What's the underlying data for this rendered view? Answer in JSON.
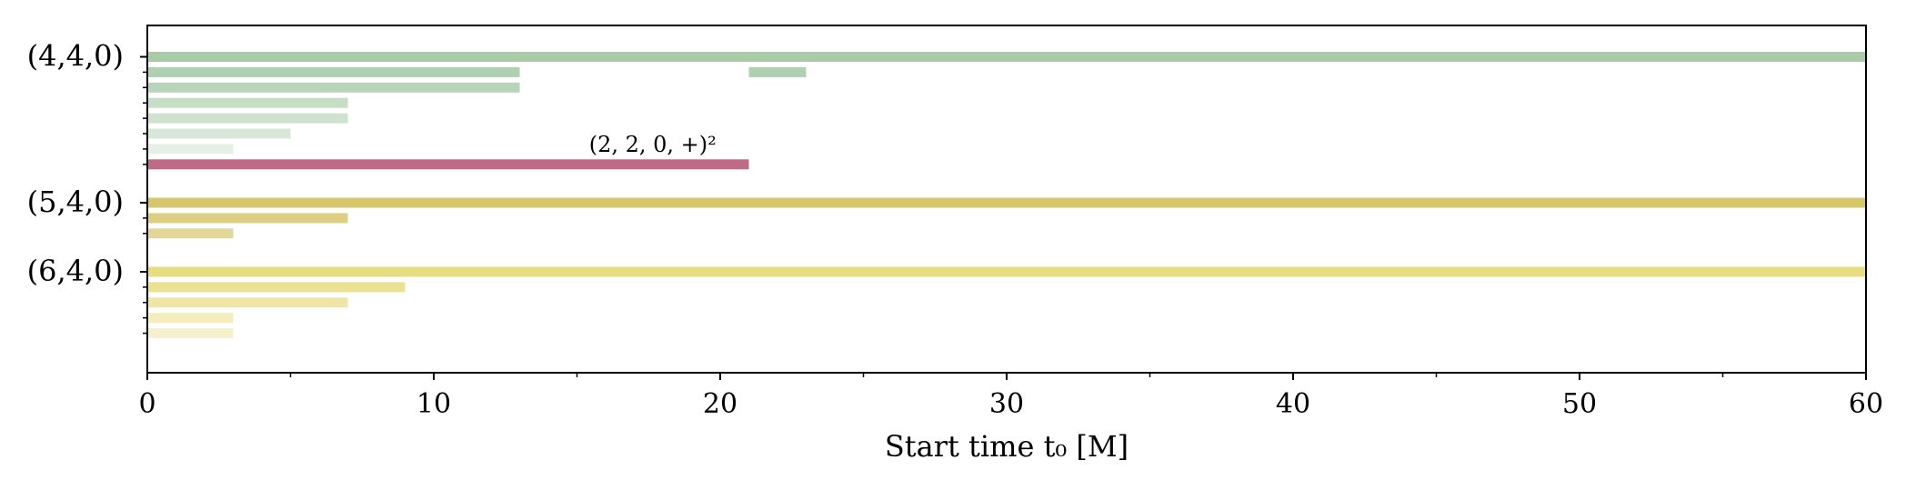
{
  "chart_data": {
    "type": "bar",
    "orientation": "horizontal",
    "xlabel": "Start time t₀ [M]",
    "xlim": [
      0,
      60
    ],
    "xticks": [
      0,
      10,
      20,
      30,
      40,
      50,
      60
    ],
    "grid": false,
    "groups": [
      {
        "label": "(4,4,0)",
        "color": "#a8cba8",
        "rows": [
          {
            "segments": [
              [
                0,
                60
              ]
            ],
            "opacity": 1.0
          },
          {
            "segments": [
              [
                0,
                13
              ],
              [
                21,
                23
              ]
            ],
            "opacity": 0.9
          },
          {
            "segments": [
              [
                0,
                13
              ]
            ],
            "opacity": 0.8
          },
          {
            "segments": [
              [
                0,
                7
              ]
            ],
            "opacity": 0.65
          },
          {
            "segments": [
              [
                0,
                7
              ]
            ],
            "opacity": 0.55
          },
          {
            "segments": [
              [
                0,
                5
              ]
            ],
            "opacity": 0.45
          },
          {
            "segments": [
              [
                0,
                3
              ]
            ],
            "opacity": 0.3
          },
          {
            "segments": [
              [
                0,
                21
              ]
            ],
            "opacity": 1.0,
            "color": "#c06a88",
            "annotation": "(2, 2, 0, +)²"
          }
        ]
      },
      {
        "label": "(5,4,0)",
        "color": "#d6c66c",
        "rows": [
          {
            "segments": [
              [
                0,
                60
              ]
            ],
            "opacity": 1.0
          },
          {
            "segments": [
              [
                0,
                7
              ]
            ],
            "opacity": 0.85
          },
          {
            "segments": [
              [
                0,
                3
              ]
            ],
            "opacity": 0.7
          }
        ]
      },
      {
        "label": "(6,4,0)",
        "color": "#e8dc80",
        "rows": [
          {
            "segments": [
              [
                0,
                60
              ]
            ],
            "opacity": 1.0
          },
          {
            "segments": [
              [
                0,
                9
              ]
            ],
            "opacity": 0.85
          },
          {
            "segments": [
              [
                0,
                7
              ]
            ],
            "opacity": 0.7
          },
          {
            "segments": [
              [
                0,
                3
              ]
            ],
            "opacity": 0.5
          },
          {
            "segments": [
              [
                0,
                3
              ]
            ],
            "opacity": 0.4
          }
        ]
      }
    ]
  }
}
